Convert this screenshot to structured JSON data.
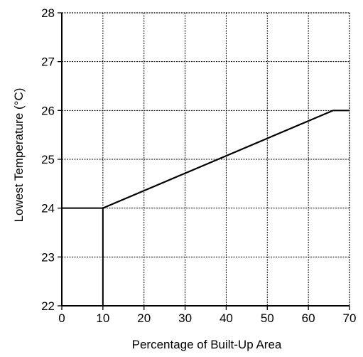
{
  "chart_data": {
    "type": "line",
    "title": "",
    "xlabel": "Percentage of Built-Up Area",
    "ylabel": "Lowest Temperature (°C)",
    "xlim": [
      0,
      70
    ],
    "ylim": [
      22,
      28
    ],
    "x_ticks": [
      "0",
      "10",
      "20",
      "30",
      "40",
      "50",
      "60",
      "70"
    ],
    "y_ticks": [
      "22",
      "23",
      "24",
      "25",
      "26",
      "27",
      "28"
    ],
    "grid": true,
    "series": [
      {
        "x": [
          10,
          66
        ],
        "y": [
          24,
          26
        ]
      }
    ],
    "reference_lines": [
      {
        "x": [
          0,
          10
        ],
        "y": [
          24,
          24
        ]
      },
      {
        "x": [
          10,
          10
        ],
        "y": [
          22,
          24
        ]
      },
      {
        "x": [
          66,
          70
        ],
        "y": [
          26,
          26
        ]
      }
    ],
    "colors": {
      "line": "#000000",
      "grid": "#000000"
    }
  }
}
